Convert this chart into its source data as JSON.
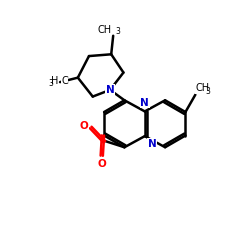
{
  "bg": "#ffffff",
  "bc": "#000000",
  "nc": "#0000cc",
  "oc": "#ff0000",
  "lw": 1.8,
  "xlim": [
    0,
    10
  ],
  "ylim": [
    0,
    10
  ],
  "fs": 7.5,
  "ss": 5.5
}
